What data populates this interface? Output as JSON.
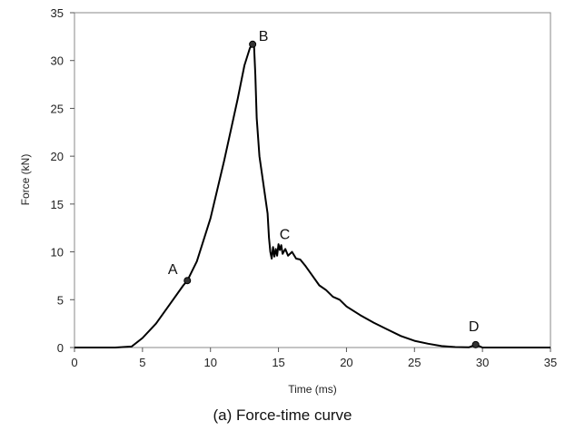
{
  "caption": "(a) Force-time curve",
  "chart_data": {
    "type": "line",
    "xlabel": "Time (ms)",
    "ylabel": "Force (kN)",
    "xlim": [
      0,
      35
    ],
    "ylim": [
      0,
      35
    ],
    "xticks": [
      0,
      5,
      10,
      15,
      20,
      25,
      30,
      35
    ],
    "yticks": [
      0,
      5,
      10,
      15,
      20,
      25,
      30,
      35
    ],
    "grid": false,
    "series": [
      {
        "color": "#000000",
        "x": [
          0,
          3,
          4.2,
          5,
          6,
          7,
          8,
          8.3,
          9,
          10,
          11,
          12,
          12.5,
          12.9,
          13.1,
          13.2,
          13.3,
          13.4,
          13.6,
          13.8,
          14.0,
          14.2,
          14.3,
          14.4,
          14.5,
          14.6,
          14.7,
          14.8,
          14.9,
          15.0,
          15.1,
          15.2,
          15.3,
          15.5,
          15.7,
          16.0,
          16.3,
          16.6,
          17.0,
          17.5,
          18.0,
          18.5,
          19.0,
          19.5,
          20,
          21,
          22,
          23,
          24,
          25,
          26,
          27,
          28,
          29,
          29.5,
          30,
          32,
          35
        ],
        "y": [
          0,
          0,
          0.1,
          1.0,
          2.5,
          4.5,
          6.5,
          7.0,
          9.0,
          13.5,
          19.5,
          26.0,
          29.5,
          31.3,
          31.7,
          31.7,
          28.5,
          24.0,
          20.0,
          18.0,
          16.0,
          14.0,
          11.5,
          10.0,
          9.3,
          10.5,
          9.5,
          10.3,
          9.6,
          10.8,
          10.2,
          10.7,
          9.8,
          10.3,
          9.6,
          10.0,
          9.3,
          9.2,
          8.5,
          7.5,
          6.5,
          6.0,
          5.3,
          5.0,
          4.3,
          3.4,
          2.6,
          1.9,
          1.2,
          0.7,
          0.4,
          0.15,
          0.05,
          0.02,
          0.3,
          0,
          0,
          0
        ]
      }
    ],
    "points": [
      {
        "label": "A",
        "x": 8.3,
        "y": 7.0
      },
      {
        "label": "B",
        "x": 13.1,
        "y": 31.7
      },
      {
        "label": "C",
        "x": 14.8,
        "y": 9.8,
        "marker": false
      },
      {
        "label": "D",
        "x": 29.5,
        "y": 0.3
      }
    ]
  }
}
